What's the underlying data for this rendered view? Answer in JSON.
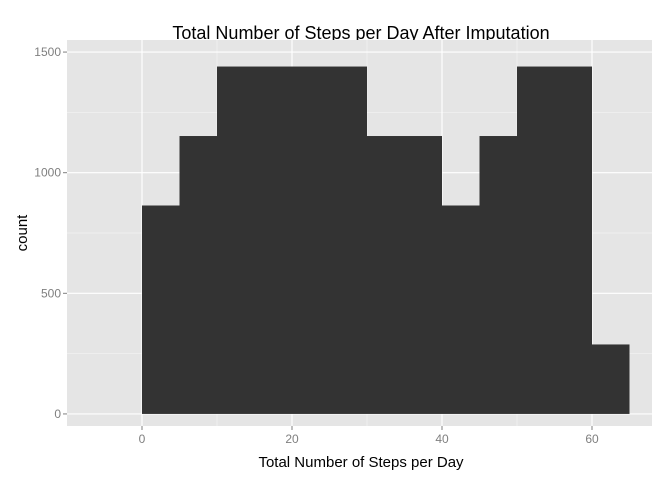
{
  "chart_data": {
    "type": "bar",
    "title": "Total Number of Steps per Day After Imputation",
    "xlabel": "Total Number of Steps per Day",
    "ylabel": "count",
    "xlim": [
      -10,
      68
    ],
    "ylim": [
      -50,
      1550
    ],
    "x_ticks": [
      0,
      20,
      40,
      60
    ],
    "y_ticks": [
      0,
      500,
      1000,
      1500
    ],
    "grid": true,
    "bar_color": "#333333",
    "panel_color": "#e5e5e5",
    "grid_color": "#ffffff",
    "bins": [
      {
        "x0": 0,
        "x1": 5,
        "value": 864
      },
      {
        "x0": 5,
        "x1": 10,
        "value": 1152
      },
      {
        "x0": 10,
        "x1": 15,
        "value": 1440
      },
      {
        "x0": 15,
        "x1": 20,
        "value": 1440
      },
      {
        "x0": 20,
        "x1": 25,
        "value": 1440
      },
      {
        "x0": 25,
        "x1": 30,
        "value": 1440
      },
      {
        "x0": 30,
        "x1": 35,
        "value": 1152
      },
      {
        "x0": 35,
        "x1": 40,
        "value": 1152
      },
      {
        "x0": 40,
        "x1": 45,
        "value": 864
      },
      {
        "x0": 45,
        "x1": 50,
        "value": 1152
      },
      {
        "x0": 50,
        "x1": 55,
        "value": 1440
      },
      {
        "x0": 55,
        "x1": 60,
        "value": 1440
      },
      {
        "x0": 60,
        "x1": 65,
        "value": 288
      }
    ]
  }
}
